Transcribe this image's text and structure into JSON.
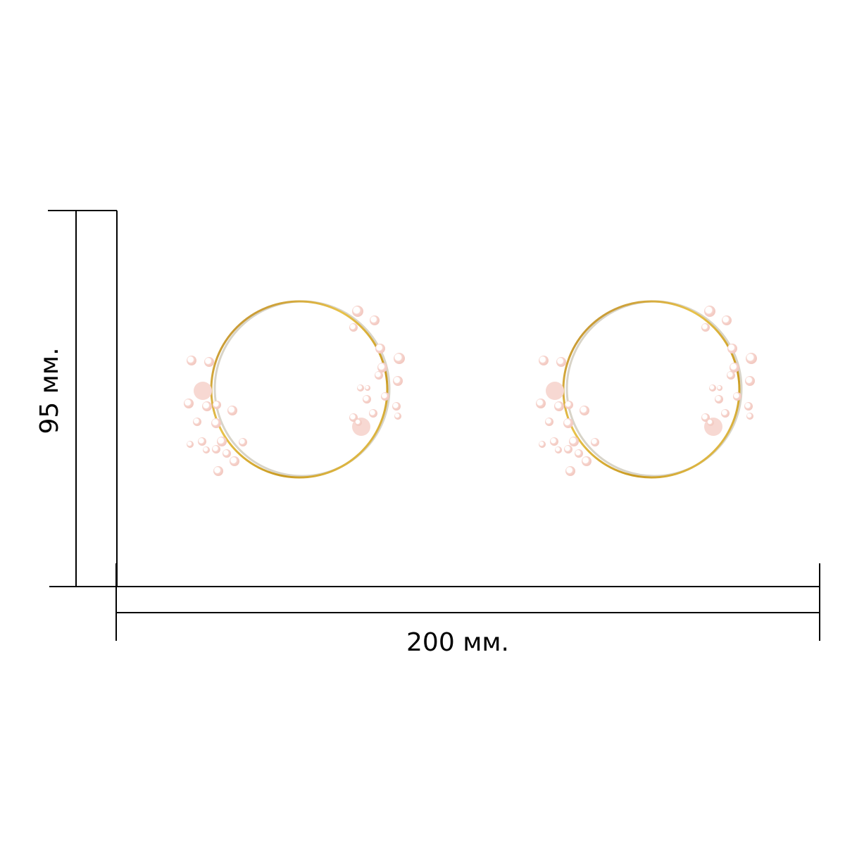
{
  "dimensions": {
    "height_label": "95 мм.",
    "width_label": "200 мм."
  },
  "product": {
    "items": [
      {
        "name": "left-earring"
      },
      {
        "name": "right-earring"
      }
    ],
    "colors": {
      "gold": "#d4a82a",
      "silver": "#d8d4c8",
      "pearl": "#f7d8d2"
    }
  }
}
